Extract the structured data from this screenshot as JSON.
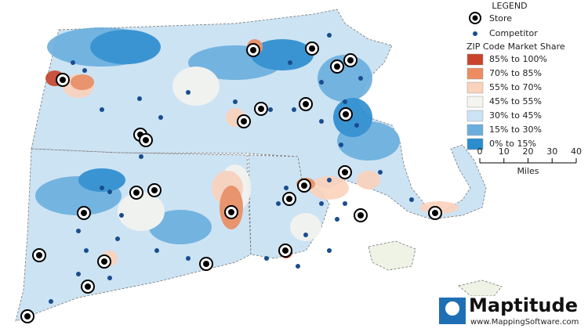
{
  "legend": {
    "title": "LEGEND",
    "store": "Store",
    "competitor": "Competitor",
    "subtitle": "ZIP Code Market Share",
    "classes": [
      {
        "label": "85% to 100%",
        "color": "#c8442c"
      },
      {
        "label": "70% to 85%",
        "color": "#ec8c60"
      },
      {
        "label": "55% to 70%",
        "color": "#fbd2bb"
      },
      {
        "label": "45% to 55%",
        "color": "#f4f4f0"
      },
      {
        "label": "30% to 45%",
        "color": "#cce3f3"
      },
      {
        "label": "15% to 30%",
        "color": "#6aaede"
      },
      {
        "label": "0% to 15%",
        "color": "#2b8ccf"
      }
    ]
  },
  "scale": {
    "ticks": [
      0,
      10,
      20,
      30,
      40
    ],
    "unit": "Miles"
  },
  "logo": {
    "name": "Maptitude",
    "url": "www.MappingSoftware.com"
  }
}
